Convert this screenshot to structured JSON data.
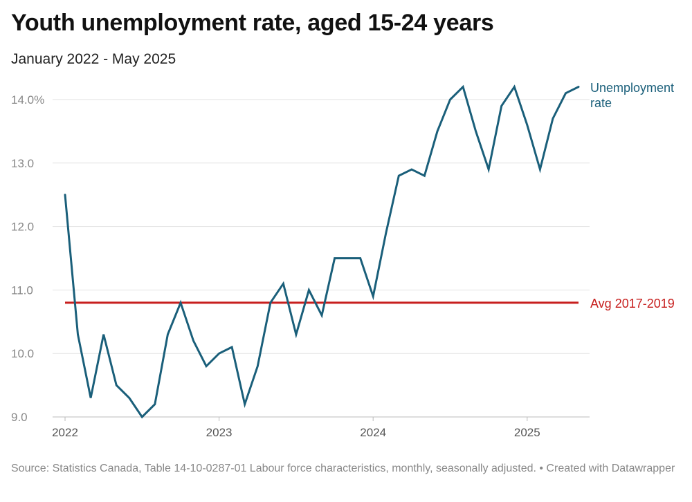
{
  "title": "Youth unemployment rate, aged 15-24 years",
  "subtitle": "January 2022 - May 2025",
  "notes": "Source: Statistics Canada, Table 14-10-0287-01  Labour force characteristics, monthly, seasonally adjusted. • Created with Datawrapper",
  "chart_data": {
    "type": "line",
    "title": "Youth unemployment rate, aged 15-24 years",
    "subtitle": "January 2022 - May 2025",
    "x_start": "2022-01",
    "x_end": "2025-05",
    "x_ticks": [
      "2022",
      "2023",
      "2024",
      "2025"
    ],
    "y_ticks": [
      "9.0",
      "10.0",
      "11.0",
      "12.0",
      "13.0",
      "14.0%"
    ],
    "y_tick_values": [
      9,
      10,
      11,
      12,
      13,
      14
    ],
    "ylim": [
      9,
      14.3
    ],
    "grid": true,
    "series": [
      {
        "name": "Unemployment rate",
        "color": "#1a5f7a",
        "values": [
          12.5,
          10.3,
          9.3,
          10.3,
          9.5,
          9.3,
          9.0,
          9.2,
          10.3,
          10.8,
          10.2,
          9.8,
          10.0,
          10.1,
          9.2,
          9.8,
          10.8,
          11.1,
          10.3,
          11.0,
          10.6,
          11.5,
          11.5,
          11.5,
          10.9,
          11.9,
          12.8,
          12.9,
          12.8,
          13.5,
          14.0,
          14.2,
          13.5,
          12.9,
          13.9,
          14.2,
          13.6,
          12.9,
          13.7,
          14.1,
          14.2
        ]
      }
    ],
    "reference_line": {
      "label": "Avg 2017-2019",
      "value": 10.8,
      "color": "#c71e1d"
    }
  }
}
